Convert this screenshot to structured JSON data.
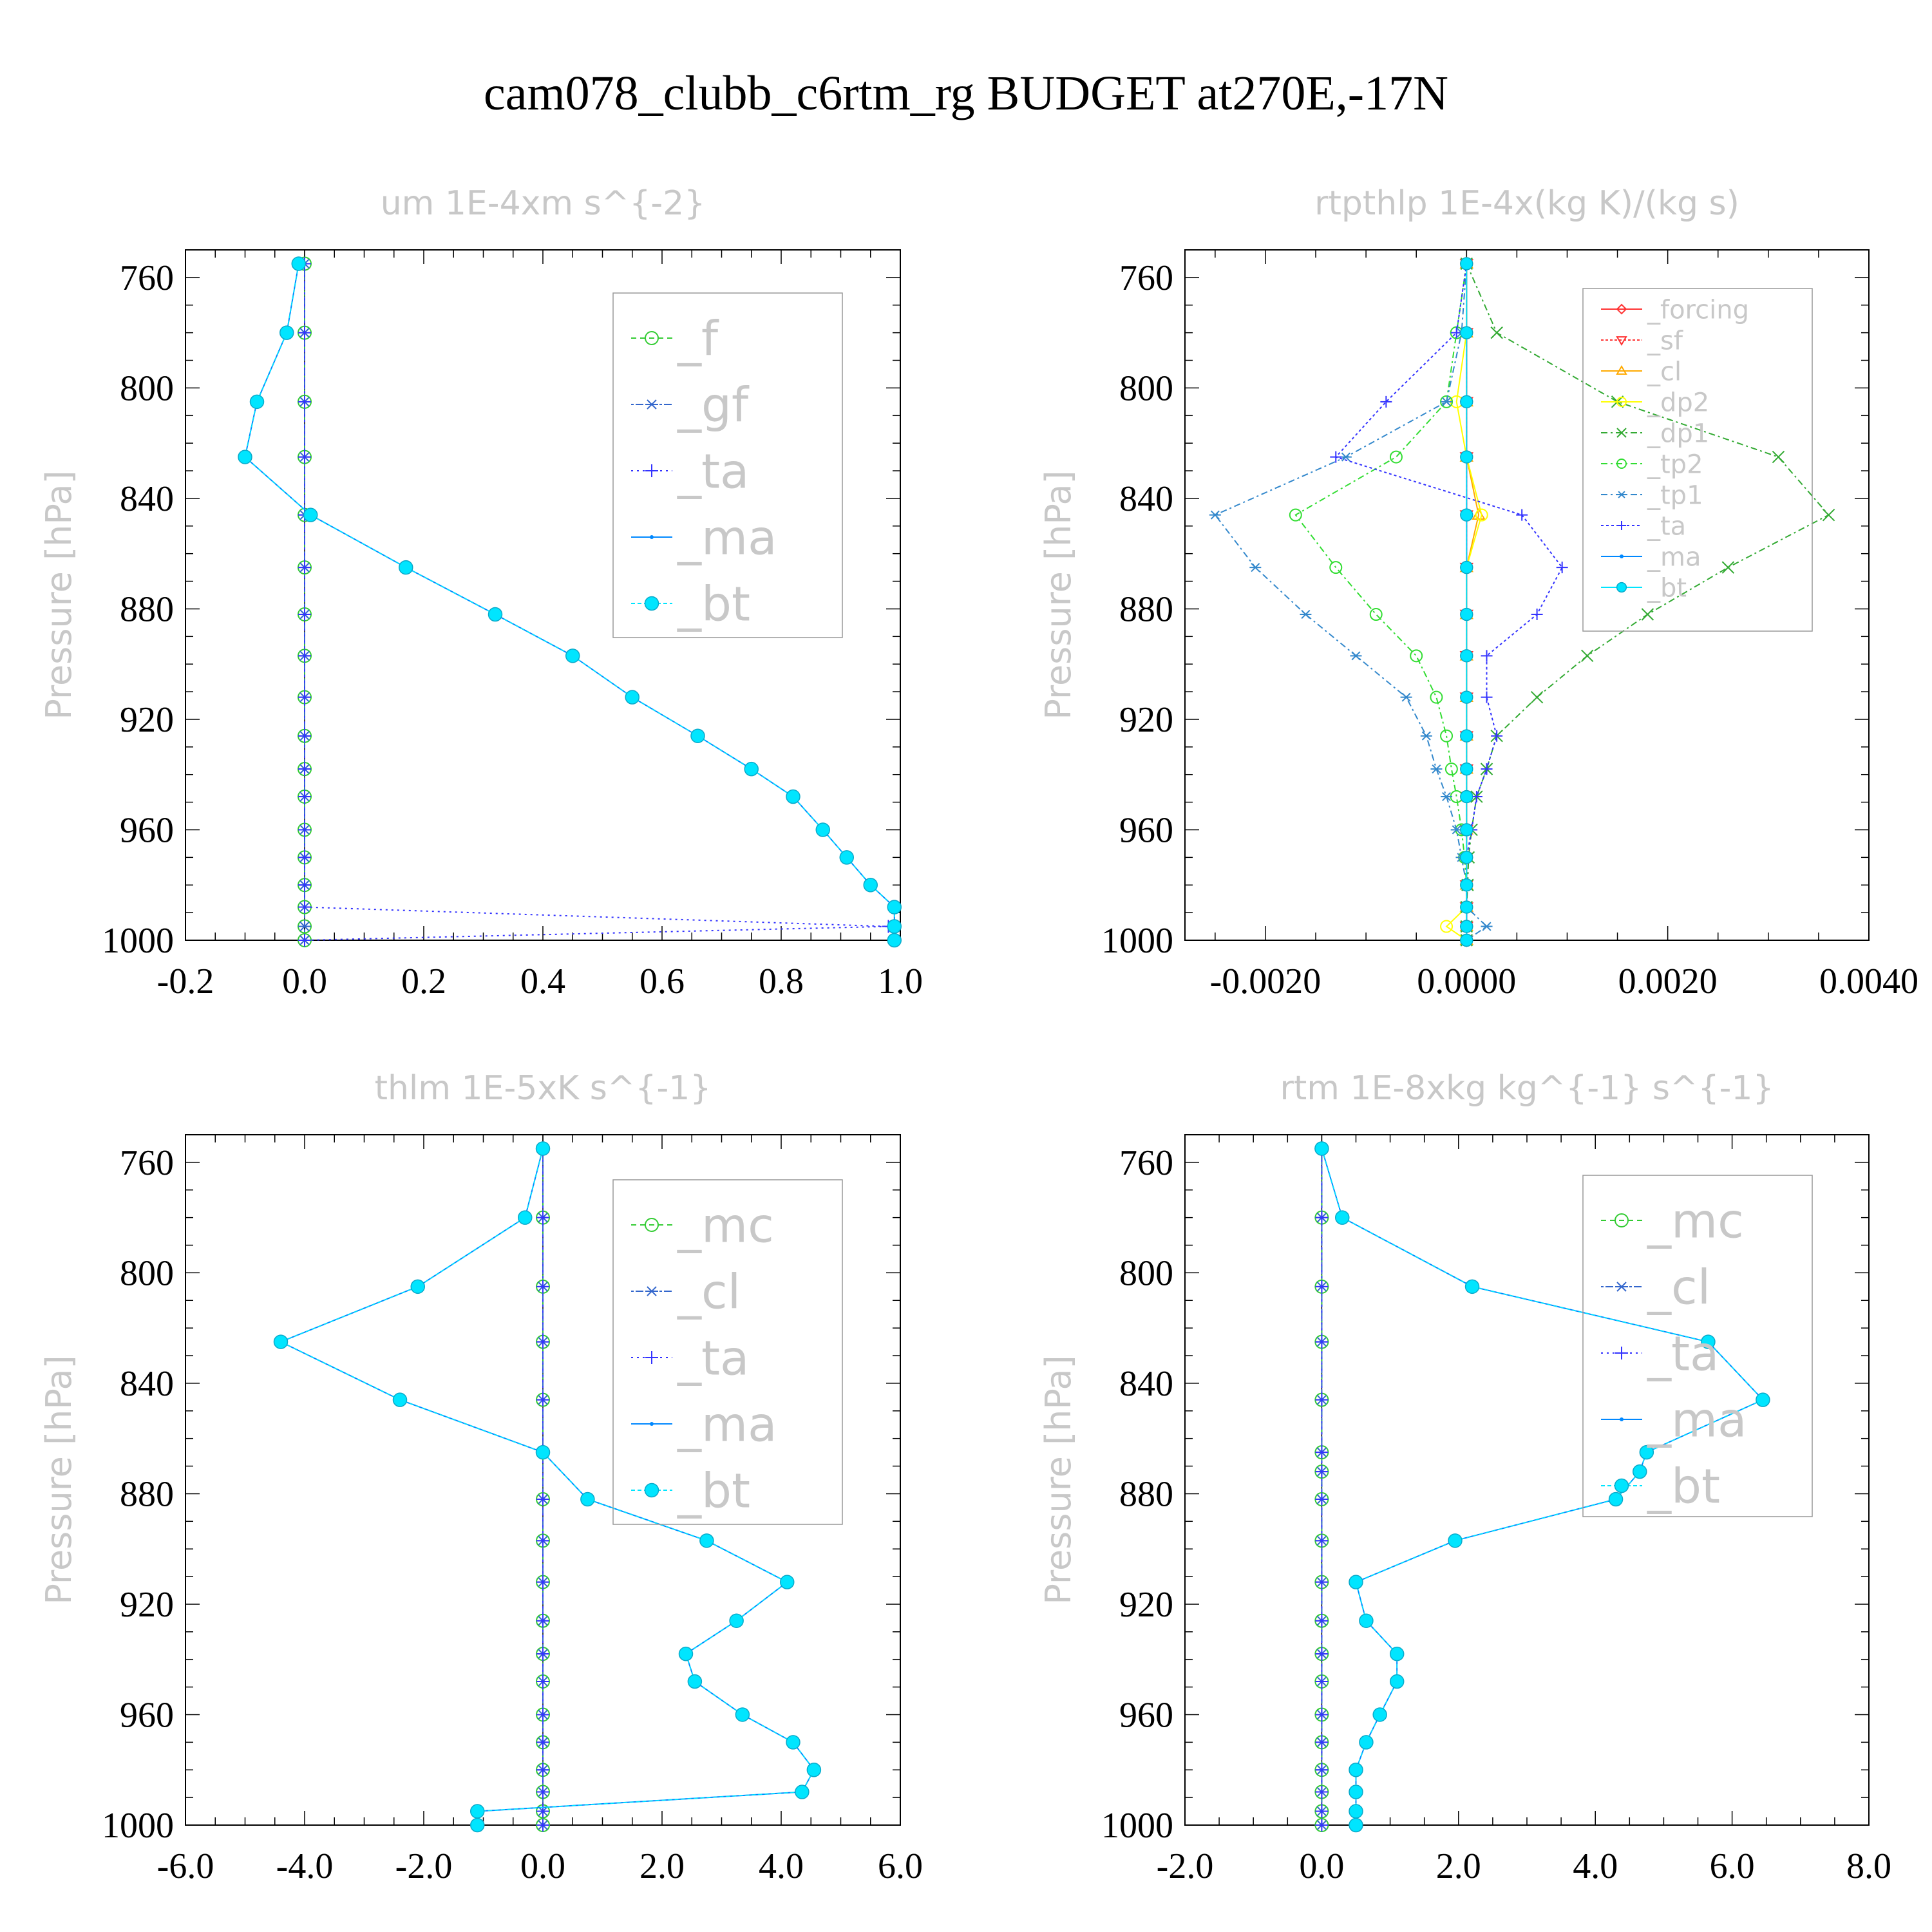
{
  "title": "cam078_clubb_c6rtm_rg  BUDGET at270E,-17N",
  "chart_data": [
    {
      "type": "line",
      "title": "um  1E-4xm s^{-2}",
      "ylabel": "Pressure [hPa]",
      "ylim": [
        750,
        1000
      ],
      "yticks": [
        "760",
        "800",
        "840",
        "880",
        "920",
        "960",
        "1000"
      ],
      "xlim": [
        -0.2,
        1.0
      ],
      "xticks": [
        "-0.2",
        "0.0",
        "0.2",
        "0.4",
        "0.6",
        "0.8",
        "1.0"
      ],
      "legend": [
        "_f",
        "_gf",
        "_ta",
        "_ma",
        "_bt"
      ],
      "legend_size": "large",
      "p": [
        755,
        780,
        805,
        825,
        846,
        865,
        882,
        897,
        912,
        926,
        938,
        948,
        960,
        970,
        980,
        988,
        995,
        1000
      ],
      "series": [
        {
          "name": "_f",
          "color": "#33cc33",
          "marker": "circle",
          "dash": "8,6",
          "values": [
            0,
            0,
            0,
            0,
            0,
            0,
            0,
            0,
            0,
            0,
            0,
            0,
            0,
            0,
            0,
            0,
            0,
            0
          ]
        },
        {
          "name": "_gf",
          "color": "#3366cc",
          "marker": "asterisk",
          "dash": "4,3,12,3",
          "values": [
            0,
            0,
            0,
            0,
            0,
            0,
            0,
            0,
            0,
            0,
            0,
            0,
            0,
            0,
            0,
            0,
            0,
            0
          ]
        },
        {
          "name": "_ta",
          "color": "#3333ff",
          "marker": "plus",
          "dash": "3,6",
          "values": [
            0,
            0,
            0,
            0,
            0,
            0,
            0,
            0,
            0,
            0,
            0,
            0,
            0,
            0,
            0,
            0,
            0.98,
            0
          ]
        },
        {
          "name": "_ma",
          "color": "#0088ff",
          "marker": "dot",
          "dash": "",
          "values": [
            -0.01,
            -0.03,
            -0.08,
            -0.1,
            0.01,
            0.17,
            0.32,
            0.45,
            0.55,
            0.66,
            0.75,
            0.82,
            0.87,
            0.91,
            0.95,
            0.99,
            0.99,
            0.99
          ]
        },
        {
          "name": "_bt",
          "color": "#00e5ff",
          "marker": "filled",
          "dash": "6,4",
          "values": [
            -0.01,
            -0.03,
            -0.08,
            -0.1,
            0.01,
            0.17,
            0.32,
            0.45,
            0.55,
            0.66,
            0.75,
            0.82,
            0.87,
            0.91,
            0.95,
            0.99,
            0.99,
            0.99
          ]
        }
      ]
    },
    {
      "type": "line",
      "title": "rtpthlp  1E-4x(kg K)/(kg s)",
      "ylabel": "Pressure [hPa]",
      "ylim": [
        750,
        1000
      ],
      "yticks": [
        "760",
        "800",
        "840",
        "880",
        "920",
        "960",
        "1000"
      ],
      "xlim": [
        -0.0028,
        0.004
      ],
      "xticks": [
        "-0.0020",
        "0.0000",
        "0.0020",
        "0.0040"
      ],
      "legend": [
        "_forcing",
        "_sf",
        "_cl",
        "_dp2",
        "_dp1",
        "_tp2",
        "_tp1",
        "_ta",
        "_ma",
        "_bt"
      ],
      "legend_size": "small",
      "p": [
        755,
        780,
        805,
        825,
        846,
        865,
        882,
        897,
        912,
        926,
        938,
        948,
        960,
        970,
        980,
        988,
        995,
        1000
      ],
      "series": [
        {
          "name": "_forcing",
          "color": "#ff3333",
          "marker": "diamond",
          "dash": "",
          "values": [
            0,
            0,
            0,
            0,
            0,
            0,
            0,
            0,
            0,
            0,
            0,
            0,
            0,
            0,
            0,
            0,
            0,
            0
          ]
        },
        {
          "name": "_sf",
          "color": "#ff3333",
          "marker": "triangle-down",
          "dash": "4,3",
          "values": [
            0,
            0,
            0,
            0,
            0,
            0,
            0,
            0,
            0,
            0,
            0,
            0,
            0,
            0,
            0,
            0,
            0,
            0
          ]
        },
        {
          "name": "_cl",
          "color": "#ffaa00",
          "marker": "triangle-up",
          "dash": "",
          "values": [
            0,
            0,
            0,
            0,
            0.00012,
            0,
            0,
            0,
            0,
            0,
            0,
            0,
            0,
            0,
            0,
            0,
            0,
            0
          ]
        },
        {
          "name": "_dp2",
          "color": "#ffff00",
          "marker": "circle",
          "dash": "",
          "values": [
            0,
            0,
            -0.0001,
            0,
            0.00015,
            0,
            0,
            0,
            0,
            0,
            0,
            0,
            0,
            0,
            0,
            0,
            -0.0002,
            0
          ]
        },
        {
          "name": "_dp1",
          "color": "#33aa33",
          "marker": "x",
          "dash": "10,5,3,5",
          "values": [
            0,
            0.0003,
            0.0015,
            0.0031,
            0.0036,
            0.0026,
            0.0018,
            0.0012,
            0.0007,
            0.0003,
            0.0002,
            0.0001,
            5e-05,
            2e-05,
            1e-05,
            0,
            0,
            0
          ]
        },
        {
          "name": "_tp2",
          "color": "#33dd33",
          "marker": "circle",
          "dash": "10,5,3,5",
          "values": [
            0,
            -0.0001,
            -0.0002,
            -0.0007,
            -0.0017,
            -0.0013,
            -0.0009,
            -0.0005,
            -0.0003,
            -0.0002,
            -0.00015,
            -0.0001,
            -5e-05,
            -2e-05,
            0,
            0,
            0,
            0
          ]
        },
        {
          "name": "_tp1",
          "color": "#3388cc",
          "marker": "asterisk",
          "dash": "10,5,3,5",
          "values": [
            0,
            -5e-05,
            -0.0002,
            -0.0012,
            -0.0025,
            -0.0021,
            -0.0016,
            -0.0011,
            -0.0006,
            -0.0004,
            -0.0003,
            -0.0002,
            -0.0001,
            -5e-05,
            0,
            0,
            0.0002,
            0
          ]
        },
        {
          "name": "_ta",
          "color": "#3333ff",
          "marker": "plus",
          "dash": "4,4",
          "values": [
            0,
            -0.0001,
            -0.0008,
            -0.0013,
            0.00055,
            0.00095,
            0.0007,
            0.0002,
            0.0002,
            0.0003,
            0.0002,
            0.0001,
            5e-05,
            0,
            0,
            0,
            0,
            0
          ]
        },
        {
          "name": "_ma",
          "color": "#0088ff",
          "marker": "dot",
          "dash": "",
          "values": [
            0,
            0,
            0,
            0,
            0,
            0,
            0,
            0,
            0,
            0,
            0,
            0,
            0,
            0,
            0,
            0,
            0,
            0
          ]
        },
        {
          "name": "_bt",
          "color": "#00e5ff",
          "marker": "filled",
          "dash": "",
          "values": [
            0,
            0,
            0,
            0,
            0,
            0,
            0,
            0,
            0,
            0,
            0,
            0,
            0,
            0,
            0,
            0,
            0,
            0
          ]
        }
      ]
    },
    {
      "type": "line",
      "title": "thlm  1E-5xK s^{-1}",
      "ylabel": "Pressure [hPa]",
      "ylim": [
        750,
        1000
      ],
      "yticks": [
        "760",
        "800",
        "840",
        "880",
        "920",
        "960",
        "1000"
      ],
      "xlim": [
        -6.0,
        6.0
      ],
      "xticks": [
        "-6.0",
        "-4.0",
        "-2.0",
        "0.0",
        "2.0",
        "4.0",
        "6.0"
      ],
      "legend": [
        "_mc",
        "_cl",
        "_ta",
        "_ma",
        "_bt"
      ],
      "legend_size": "large",
      "p": [
        755,
        780,
        805,
        825,
        846,
        865,
        882,
        897,
        912,
        926,
        938,
        948,
        960,
        970,
        980,
        988,
        995,
        1000
      ],
      "series": [
        {
          "name": "_mc",
          "color": "#33cc33",
          "marker": "circle",
          "dash": "8,6",
          "values": [
            0,
            0,
            0,
            0,
            0,
            0,
            0,
            0,
            0,
            0,
            0,
            0,
            0,
            0,
            0,
            0,
            0,
            0
          ]
        },
        {
          "name": "_cl",
          "color": "#3366cc",
          "marker": "asterisk",
          "dash": "4,3,12,3",
          "values": [
            0,
            0,
            0,
            0,
            0,
            0,
            0,
            0,
            0,
            0,
            0,
            0,
            0,
            0,
            0,
            0,
            0,
            0
          ]
        },
        {
          "name": "_ta",
          "color": "#3333ff",
          "marker": "plus",
          "dash": "3,6",
          "values": [
            0,
            0,
            0,
            0,
            0,
            0,
            0,
            0,
            0,
            0,
            0,
            0,
            0,
            0,
            0,
            0,
            0,
            0
          ]
        },
        {
          "name": "_ma",
          "color": "#0088ff",
          "marker": "dot",
          "dash": "",
          "values": [
            0,
            -0.3,
            -2.1,
            -4.4,
            -2.4,
            0,
            0.75,
            2.75,
            4.1,
            3.25,
            2.4,
            2.55,
            3.35,
            4.2,
            4.55,
            4.35,
            -1.1,
            -1.1
          ]
        },
        {
          "name": "_bt",
          "color": "#00e5ff",
          "marker": "filled",
          "dash": "6,4",
          "values": [
            0,
            -0.3,
            -2.1,
            -4.4,
            -2.4,
            0,
            0.75,
            2.75,
            4.1,
            3.25,
            2.4,
            2.55,
            3.35,
            4.2,
            4.55,
            4.35,
            -1.1,
            -1.1
          ]
        }
      ]
    },
    {
      "type": "line",
      "title": "rtm  1E-8xkg kg^{-1} s^{-1}",
      "ylabel": "Pressure [hPa]",
      "ylim": [
        750,
        1000
      ],
      "yticks": [
        "760",
        "800",
        "840",
        "880",
        "920",
        "960",
        "1000"
      ],
      "xlim": [
        -2.0,
        8.0
      ],
      "xticks": [
        "-2.0",
        "0.0",
        "2.0",
        "4.0",
        "6.0",
        "8.0"
      ],
      "legend": [
        "_mc",
        "_cl",
        "_ta",
        "_ma",
        "_bt"
      ],
      "legend_size": "large",
      "p": [
        755,
        780,
        805,
        825,
        846,
        865,
        872,
        882,
        897,
        912,
        926,
        938,
        948,
        960,
        970,
        980,
        988,
        995,
        1000
      ],
      "series": [
        {
          "name": "_mc",
          "color": "#33cc33",
          "marker": "circle",
          "dash": "8,6",
          "values": [
            0,
            0,
            0,
            0,
            0,
            0,
            0,
            0,
            0,
            0,
            0,
            0,
            0,
            0,
            0,
            0,
            0,
            0,
            0
          ]
        },
        {
          "name": "_cl",
          "color": "#3366cc",
          "marker": "asterisk",
          "dash": "4,3,12,3",
          "values": [
            0,
            0,
            0,
            0,
            0,
            0,
            0,
            0,
            0,
            0,
            0,
            0,
            0,
            0,
            0,
            0,
            0,
            0,
            0
          ]
        },
        {
          "name": "_ta",
          "color": "#3333ff",
          "marker": "plus",
          "dash": "3,6",
          "values": [
            0,
            0,
            0,
            0,
            0,
            0,
            0,
            0,
            0,
            0,
            0,
            0,
            0,
            0,
            0,
            0,
            0,
            0,
            0
          ]
        },
        {
          "name": "_ma",
          "color": "#0088ff",
          "marker": "dot",
          "dash": "",
          "values": [
            0,
            0.3,
            2.2,
            5.65,
            6.45,
            4.75,
            4.65,
            4.3,
            1.95,
            0.5,
            0.65,
            1.1,
            1.1,
            0.85,
            0.65,
            0.5,
            0.5,
            0.5,
            0.5
          ]
        },
        {
          "name": "_bt",
          "color": "#00e5ff",
          "marker": "filled",
          "dash": "6,4",
          "values": [
            0,
            0.3,
            2.2,
            5.65,
            6.45,
            4.75,
            4.65,
            4.3,
            1.95,
            0.5,
            0.65,
            1.1,
            1.1,
            0.85,
            0.65,
            0.5,
            0.5,
            0.5,
            0.5
          ]
        }
      ]
    }
  ]
}
